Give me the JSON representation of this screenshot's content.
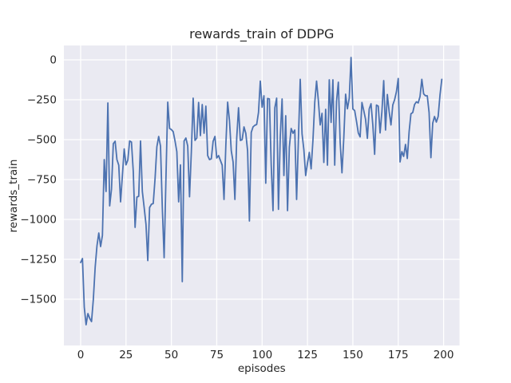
{
  "figure": {
    "background": "#ffffff",
    "title": "rewards_train of DDPG"
  },
  "axes": {
    "x_label": "episodes",
    "y_label": "rewards_train",
    "x_tick_labels": [
      "0",
      "25",
      "50",
      "75",
      "100",
      "125",
      "150",
      "175",
      "200"
    ],
    "y_tick_labels": [
      "0",
      "−250",
      "−500",
      "−750",
      "−1000",
      "−1250",
      "−1500"
    ]
  },
  "style": {
    "plot_bg": "#eaeaf2",
    "grid_color": "#ffffff",
    "line_color": "#4c72b0",
    "text_color": "#262626"
  },
  "chart_data": {
    "type": "line",
    "title": "rewards_train of DDPG",
    "xlabel": "episodes",
    "ylabel": "rewards_train",
    "legend": "none",
    "grid": true,
    "x_ticks": [
      0,
      25,
      50,
      75,
      100,
      125,
      150,
      175,
      200
    ],
    "y_ticks": [
      0,
      -250,
      -500,
      -750,
      -1000,
      -1250,
      -1500
    ],
    "xlim": [
      -9.24,
      208.76
    ],
    "ylim": [
      -1790,
      90
    ],
    "series": [
      {
        "name": "rewards_train",
        "x_start": 0,
        "x_step": 1,
        "values": [
          -1270,
          -1245,
          -1550,
          -1660,
          -1590,
          -1620,
          -1640,
          -1500,
          -1300,
          -1165,
          -1085,
          -1170,
          -1100,
          -625,
          -825,
          -270,
          -915,
          -810,
          -525,
          -510,
          -625,
          -660,
          -890,
          -725,
          -558,
          -658,
          -628,
          -508,
          -515,
          -700,
          -1050,
          -860,
          -855,
          -508,
          -825,
          -925,
          -1030,
          -1258,
          -925,
          -905,
          -900,
          -745,
          -545,
          -480,
          -540,
          -925,
          -1240,
          -745,
          -265,
          -430,
          -437,
          -450,
          -508,
          -575,
          -890,
          -658,
          -1390,
          -508,
          -490,
          -540,
          -858,
          -575,
          -240,
          -505,
          -490,
          -267,
          -475,
          -280,
          -460,
          -290,
          -600,
          -625,
          -620,
          -510,
          -480,
          -615,
          -600,
          -630,
          -660,
          -875,
          -537,
          -265,
          -380,
          -570,
          -640,
          -875,
          -490,
          -300,
          -505,
          -500,
          -420,
          -460,
          -570,
          -1010,
          -455,
          -420,
          -410,
          -405,
          -330,
          -133,
          -297,
          -225,
          -773,
          -242,
          -245,
          -655,
          -945,
          -300,
          -240,
          -937,
          -480,
          -245,
          -725,
          -350,
          -945,
          -547,
          -430,
          -460,
          -440,
          -875,
          -497,
          -122,
          -463,
          -563,
          -725,
          -647,
          -580,
          -683,
          -505,
          -267,
          -133,
          -258,
          -408,
          -335,
          -643,
          -310,
          -660,
          -125,
          -392,
          -125,
          -660,
          -258,
          -140,
          -517,
          -708,
          -490,
          -215,
          -307,
          -240,
          15,
          -308,
          -318,
          -385,
          -458,
          -483,
          -267,
          -318,
          -373,
          -492,
          -308,
          -275,
          -408,
          -592,
          -283,
          -290,
          -458,
          -325,
          -130,
          -440,
          -217,
          -325,
          -408,
          -283,
          -250,
          -200,
          -117,
          -640,
          -575,
          -605,
          -530,
          -618,
          -450,
          -338,
          -330,
          -280,
          -263,
          -270,
          -230,
          -122,
          -213,
          -225,
          -225,
          -330,
          -613,
          -397,
          -355,
          -390,
          -355,
          -222,
          -122
        ]
      }
    ]
  }
}
